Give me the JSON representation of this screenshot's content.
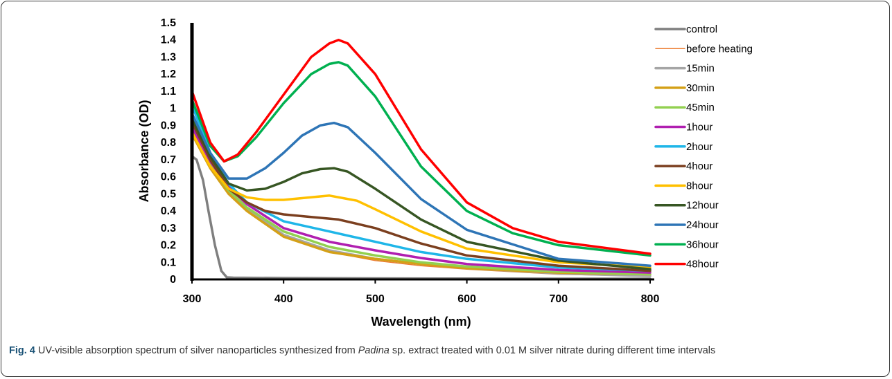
{
  "chart_data": {
    "type": "line",
    "xlabel": "Wavelength (nm)",
    "ylabel": "Absorbance (OD)",
    "xlim": [
      300,
      800
    ],
    "ylim": [
      0,
      1.5
    ],
    "x_ticks": [
      "300",
      "400",
      "500",
      "600",
      "700",
      "800"
    ],
    "y_ticks": [
      "0",
      "0.1",
      "0.2",
      "0.3",
      "0.4",
      "0.5",
      "0.6",
      "0.7",
      "0.8",
      "0.9",
      "1",
      "1.1",
      "1.2",
      "1.3",
      "1.4",
      "1.5"
    ],
    "legend_position": "right",
    "grid": false,
    "series": [
      {
        "name": "control",
        "color": "#7f7f7f",
        "width": 3.5,
        "x": [
          300,
          305,
          312,
          318,
          325,
          332,
          338,
          345,
          400,
          500,
          600,
          700,
          800
        ],
        "y": [
          0.72,
          0.7,
          0.58,
          0.4,
          0.2,
          0.05,
          0.012,
          0.01,
          0.008,
          0.006,
          0.005,
          0.004,
          0.004
        ]
      },
      {
        "name": "before heating",
        "color": "#ed7d31",
        "width": 1.5,
        "x": [
          300,
          320,
          340,
          360,
          400,
          450,
          500,
          550,
          600,
          700,
          800
        ],
        "y": [
          0.88,
          0.68,
          0.52,
          0.41,
          0.25,
          0.16,
          0.11,
          0.08,
          0.06,
          0.03,
          0.02
        ]
      },
      {
        "name": "15min",
        "color": "#a5a5a5",
        "width": 3.5,
        "x": [
          300,
          320,
          340,
          360,
          400,
          450,
          500,
          550,
          600,
          700,
          800
        ],
        "y": [
          0.86,
          0.66,
          0.51,
          0.41,
          0.26,
          0.17,
          0.12,
          0.09,
          0.065,
          0.035,
          0.02
        ]
      },
      {
        "name": "30min",
        "color": "#d4a017",
        "width": 3.5,
        "x": [
          300,
          320,
          340,
          360,
          400,
          450,
          500,
          550,
          600,
          700,
          800
        ],
        "y": [
          0.85,
          0.65,
          0.5,
          0.4,
          0.25,
          0.16,
          0.12,
          0.09,
          0.065,
          0.04,
          0.03
        ]
      },
      {
        "name": "45min",
        "color": "#92d050",
        "width": 3.5,
        "x": [
          300,
          320,
          340,
          360,
          400,
          450,
          500,
          550,
          600,
          700,
          800
        ],
        "y": [
          0.87,
          0.67,
          0.52,
          0.42,
          0.28,
          0.19,
          0.14,
          0.1,
          0.075,
          0.045,
          0.03
        ]
      },
      {
        "name": "1hour",
        "color": "#b01fb0",
        "width": 3.5,
        "x": [
          300,
          320,
          340,
          360,
          400,
          450,
          500,
          550,
          600,
          700,
          800
        ],
        "y": [
          0.89,
          0.69,
          0.54,
          0.44,
          0.3,
          0.22,
          0.17,
          0.125,
          0.09,
          0.055,
          0.04
        ]
      },
      {
        "name": "2hour",
        "color": "#1fb6e8",
        "width": 3.5,
        "x": [
          300,
          320,
          340,
          360,
          400,
          450,
          500,
          550,
          600,
          700,
          800
        ],
        "y": [
          1.02,
          0.74,
          0.56,
          0.45,
          0.34,
          0.28,
          0.22,
          0.16,
          0.12,
          0.07,
          0.05
        ]
      },
      {
        "name": "4hour",
        "color": "#7b3f1f",
        "width": 3.5,
        "x": [
          300,
          320,
          340,
          360,
          380,
          400,
          430,
          460,
          500,
          550,
          600,
          700,
          800
        ],
        "y": [
          0.92,
          0.7,
          0.53,
          0.45,
          0.4,
          0.38,
          0.365,
          0.35,
          0.3,
          0.21,
          0.14,
          0.08,
          0.05
        ]
      },
      {
        "name": "8hour",
        "color": "#ffc000",
        "width": 3.5,
        "x": [
          300,
          320,
          340,
          360,
          380,
          400,
          420,
          450,
          480,
          500,
          550,
          600,
          700,
          800
        ],
        "y": [
          0.86,
          0.66,
          0.53,
          0.48,
          0.465,
          0.465,
          0.475,
          0.49,
          0.46,
          0.41,
          0.28,
          0.18,
          0.1,
          0.07
        ]
      },
      {
        "name": "12hour",
        "color": "#375623",
        "width": 3.5,
        "x": [
          300,
          320,
          340,
          360,
          380,
          400,
          420,
          440,
          455,
          470,
          500,
          550,
          600,
          700,
          800
        ],
        "y": [
          0.94,
          0.72,
          0.56,
          0.52,
          0.53,
          0.57,
          0.62,
          0.645,
          0.65,
          0.63,
          0.53,
          0.35,
          0.22,
          0.11,
          0.06
        ]
      },
      {
        "name": "24hour",
        "color": "#2e75b6",
        "width": 3.5,
        "x": [
          300,
          320,
          340,
          360,
          380,
          400,
          420,
          440,
          455,
          470,
          500,
          550,
          600,
          700,
          800
        ],
        "y": [
          0.97,
          0.74,
          0.59,
          0.59,
          0.65,
          0.74,
          0.84,
          0.9,
          0.915,
          0.89,
          0.74,
          0.47,
          0.29,
          0.12,
          0.08
        ]
      },
      {
        "name": "36hour",
        "color": "#00b050",
        "width": 3.5,
        "x": [
          300,
          320,
          335,
          350,
          370,
          400,
          430,
          450,
          460,
          470,
          500,
          550,
          600,
          650,
          700,
          800
        ],
        "y": [
          1.05,
          0.78,
          0.69,
          0.72,
          0.83,
          1.03,
          1.2,
          1.26,
          1.27,
          1.25,
          1.07,
          0.66,
          0.4,
          0.27,
          0.2,
          0.14
        ]
      },
      {
        "name": "48hour",
        "color": "#ff0000",
        "width": 3.5,
        "x": [
          300,
          320,
          335,
          350,
          370,
          400,
          430,
          450,
          460,
          470,
          500,
          550,
          600,
          650,
          700,
          800
        ],
        "y": [
          1.1,
          0.8,
          0.69,
          0.73,
          0.86,
          1.08,
          1.3,
          1.38,
          1.4,
          1.38,
          1.2,
          0.76,
          0.45,
          0.3,
          0.22,
          0.15
        ]
      }
    ]
  },
  "caption": {
    "label": "Fig. 4",
    "text_before": " UV-visible absorption spectrum of silver nanoparticles synthesized from ",
    "genus": "Padina",
    "text_after": " sp. extract treated with 0.01 M silver nitrate during different time intervals"
  }
}
